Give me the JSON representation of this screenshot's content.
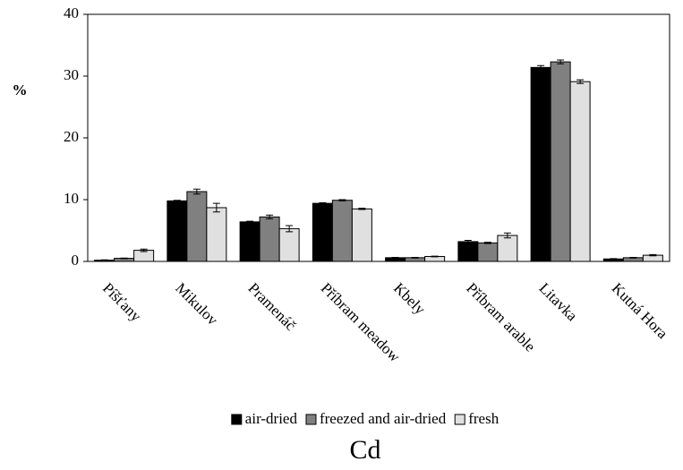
{
  "chart_data": {
    "type": "bar",
    "title": "Cd",
    "ylabel": "%",
    "categories": [
      "Píšťany",
      "Mikulov",
      "Pramenáč",
      "Příbram meadow",
      "Kbely",
      "Příbram arable",
      "Litavka",
      "Kutná Hora"
    ],
    "series": [
      {
        "name": "air-dried",
        "color": "#000000",
        "values": [
          0.2,
          9.8,
          6.4,
          9.4,
          0.6,
          3.2,
          31.4,
          0.4
        ],
        "errors": [
          0.05,
          0.1,
          0.1,
          0.1,
          0.05,
          0.2,
          0.3,
          0.05
        ]
      },
      {
        "name": "freezed and air-dried",
        "color": "#808080",
        "values": [
          0.5,
          11.3,
          7.2,
          9.9,
          0.6,
          3.0,
          32.3,
          0.6
        ],
        "errors": [
          0.05,
          0.4,
          0.3,
          0.1,
          0.05,
          0.1,
          0.3,
          0.05
        ]
      },
      {
        "name": "fresh",
        "color": "#e0e0e0",
        "values": [
          1.8,
          8.7,
          5.3,
          8.5,
          0.8,
          4.2,
          29.1,
          1.0
        ],
        "errors": [
          0.2,
          0.7,
          0.5,
          0.1,
          0.05,
          0.4,
          0.3,
          0.1
        ]
      }
    ],
    "ylim": [
      0,
      40
    ],
    "yticks": [
      0,
      10,
      20,
      30,
      40
    ],
    "grid": false
  }
}
